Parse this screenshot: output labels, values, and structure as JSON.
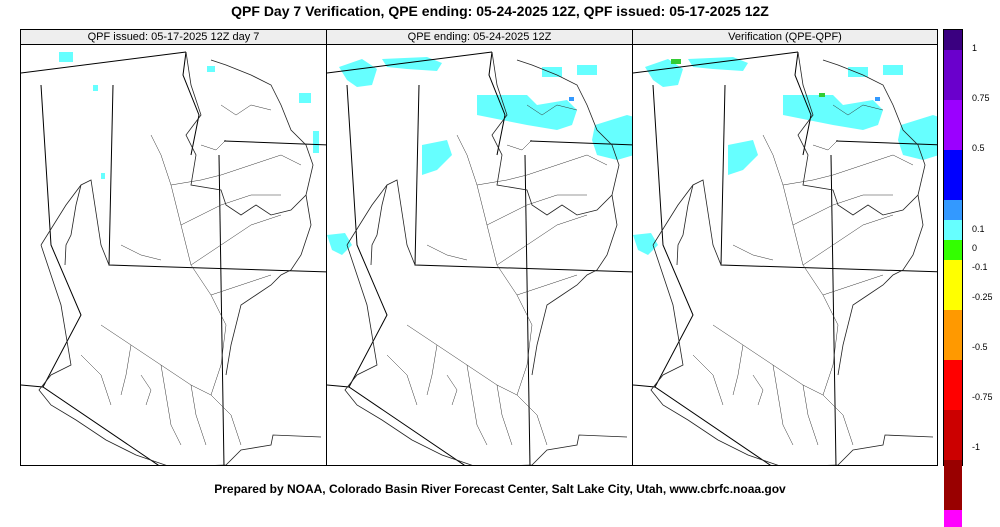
{
  "title": "QPF Day 7 Verification, QPE ending: 05-24-2025 12Z, QPF issued: 05-17-2025 12Z",
  "footer": "Prepared by NOAA, Colorado Basin River Forecast Center, Salt Lake City, Utah, www.cbrfc.noaa.gov",
  "panels": [
    {
      "header": "QPF issued: 05-17-2025 12Z day 7"
    },
    {
      "header": "QPE ending: 05-24-2025 12Z"
    },
    {
      "header": "Verification (QPE-QPF)"
    }
  ],
  "legend": {
    "labels": [
      "1",
      "0.75",
      "0.5",
      "0.1",
      "0",
      "-0.1",
      "-0.25",
      "-0.5",
      "-0.75",
      "-1"
    ],
    "colors": [
      "#3a0080",
      "#6a00cc",
      "#9b00ff",
      "#0000ff",
      "#3399ff",
      "#66ffff",
      "#33ff00",
      "#ffff00",
      "#ff9900",
      "#ff0000",
      "#cc0000",
      "#990000",
      "#ff00ff"
    ]
  },
  "colors": {
    "precip_light": "#66ffff",
    "precip_blue": "#3399ff",
    "precip_green": "#33cc33"
  }
}
